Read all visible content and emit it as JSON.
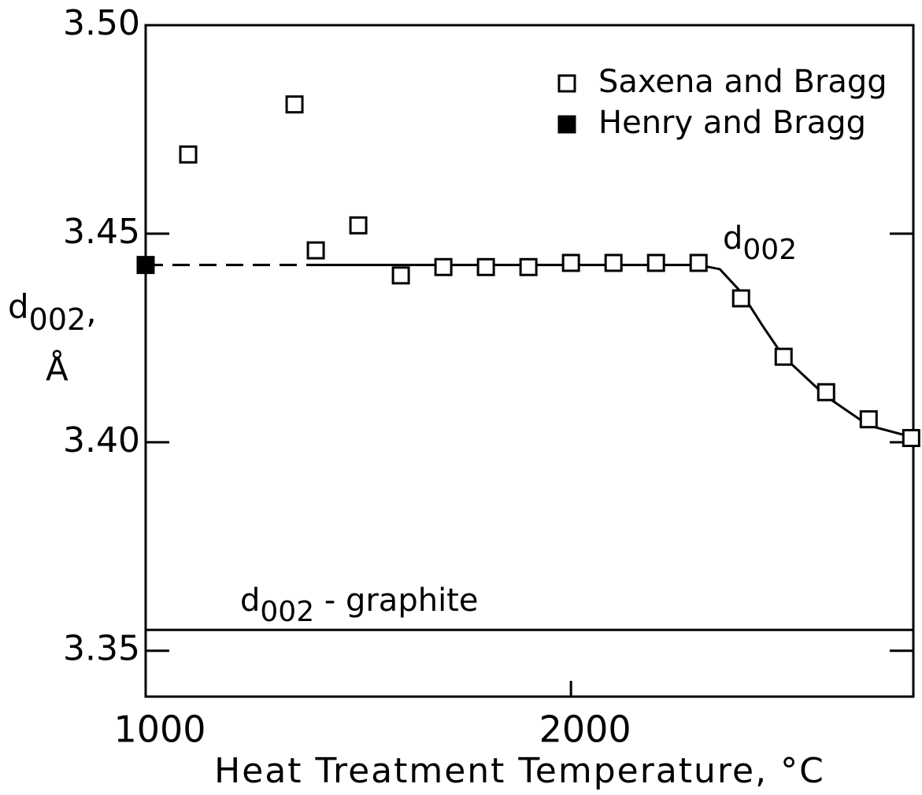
{
  "chart_data": {
    "type": "scatter",
    "xlabel": "Heat Treatment Temperature, °C",
    "ylabel": {
      "main": "d",
      "sub": "002",
      "rest": ",",
      "unit": "Å"
    },
    "xlim": [
      1000,
      2805
    ],
    "ylim": [
      3.339,
      3.5
    ],
    "xticks": [
      1000,
      2000
    ],
    "yticks": [
      {
        "value": 3.5,
        "label": "3.50"
      },
      3.45,
      {
        "value": 3.4,
        "label": "3.40"
      },
      3.35
    ],
    "legend": "upper right",
    "series": [
      {
        "name": "Saxena and Bragg",
        "marker": "open-square",
        "color": "#000000",
        "x": [
          1100,
          1350,
          1400,
          1500,
          1600,
          1700,
          1800,
          1900,
          2000,
          2100,
          2200,
          2300,
          2400,
          2500,
          2600,
          2700,
          2800
        ],
        "values": [
          3.469,
          3.481,
          3.446,
          3.452,
          3.44,
          3.442,
          3.442,
          3.442,
          3.443,
          3.443,
          3.443,
          3.443,
          3.4345,
          3.4205,
          3.412,
          3.4055,
          3.401
        ]
      },
      {
        "name": "Henry and Bragg",
        "marker": "filled-square",
        "color": "#000000",
        "x": [
          1000
        ],
        "values": [
          3.4425
        ]
      }
    ],
    "curves": [
      {
        "style": "dashed",
        "x": [
          1000,
          1400
        ],
        "values": [
          3.4425,
          3.4425
        ]
      },
      {
        "style": "solid",
        "x": [
          1400,
          2300,
          2350,
          2400,
          2450,
          2500,
          2600,
          2700,
          2800
        ],
        "values": [
          3.4425,
          3.4425,
          3.4415,
          3.436,
          3.428,
          3.4205,
          3.411,
          3.404,
          3.4013
        ]
      }
    ],
    "reference_line": {
      "value": 3.355,
      "label": {
        "main": "d",
        "sub": "002",
        "rest": " - graphite"
      }
    },
    "curve_label": {
      "main": "d",
      "sub": "002"
    }
  }
}
